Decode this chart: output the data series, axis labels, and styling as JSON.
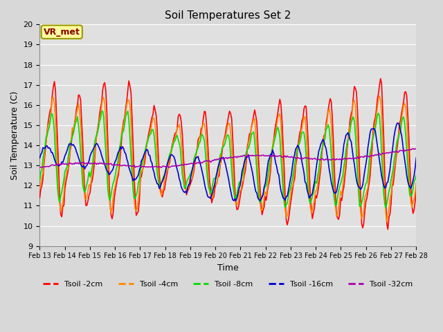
{
  "title": "Soil Temperatures Set 2",
  "xlabel": "Time",
  "ylabel": "Soil Temperature (C)",
  "ylim": [
    9.0,
    20.0
  ],
  "yticks": [
    9.0,
    10.0,
    11.0,
    12.0,
    13.0,
    14.0,
    15.0,
    16.0,
    17.0,
    18.0,
    19.0,
    20.0
  ],
  "fig_bg_color": "#d8d8d8",
  "plot_bg_color": "#e0e0e0",
  "grid_color": "#ffffff",
  "series": [
    {
      "label": "Tsoil -2cm",
      "color": "#ff0000"
    },
    {
      "label": "Tsoil -4cm",
      "color": "#ff8800"
    },
    {
      "label": "Tsoil -8cm",
      "color": "#00dd00"
    },
    {
      "label": "Tsoil -16cm",
      "color": "#0000cc"
    },
    {
      "label": "Tsoil -32cm",
      "color": "#aa00aa"
    }
  ],
  "annotation_text": "VR_met",
  "annotation_box_facecolor": "#ffffa0",
  "annotation_box_edgecolor": "#999900",
  "annotation_text_color": "#880000",
  "x_date_labels": [
    "Feb 13",
    "Feb 14",
    "Feb 15",
    "Feb 16",
    "Feb 17",
    "Feb 18",
    "Feb 19",
    "Feb 20",
    "Feb 21",
    "Feb 22",
    "Feb 23",
    "Feb 24",
    "Feb 25",
    "Feb 26",
    "Feb 27",
    "Feb 28"
  ],
  "n_days": 15,
  "pts_per_day": 24,
  "seed": 12345
}
